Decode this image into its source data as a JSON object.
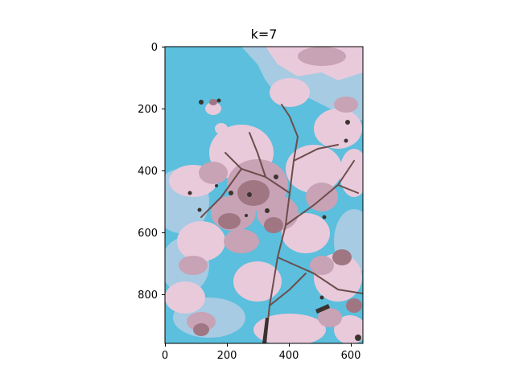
{
  "figure": {
    "title": "k=7",
    "x_ticks": [
      "0",
      "200",
      "400",
      "600"
    ],
    "y_ticks": [
      "0",
      "200",
      "400",
      "600",
      "800"
    ],
    "palette": [
      "#5bbfdd",
      "#a6cbe3",
      "#e9cadb",
      "#c8a2b5",
      "#a07683",
      "#6c4d4c",
      "#3a3430"
    ]
  },
  "chart_data": {
    "type": "image",
    "title": "k=7",
    "xlim": [
      0,
      640
    ],
    "ylim": [
      960,
      0
    ],
    "x_ticks": [
      0,
      200,
      400,
      600
    ],
    "y_ticks": [
      0,
      200,
      400,
      600,
      800
    ],
    "colors": [
      "#5bbfdd",
      "#a6cbe3",
      "#e9cadb",
      "#c8a2b5",
      "#a07683",
      "#6c4d4c",
      "#3a3430"
    ]
  }
}
